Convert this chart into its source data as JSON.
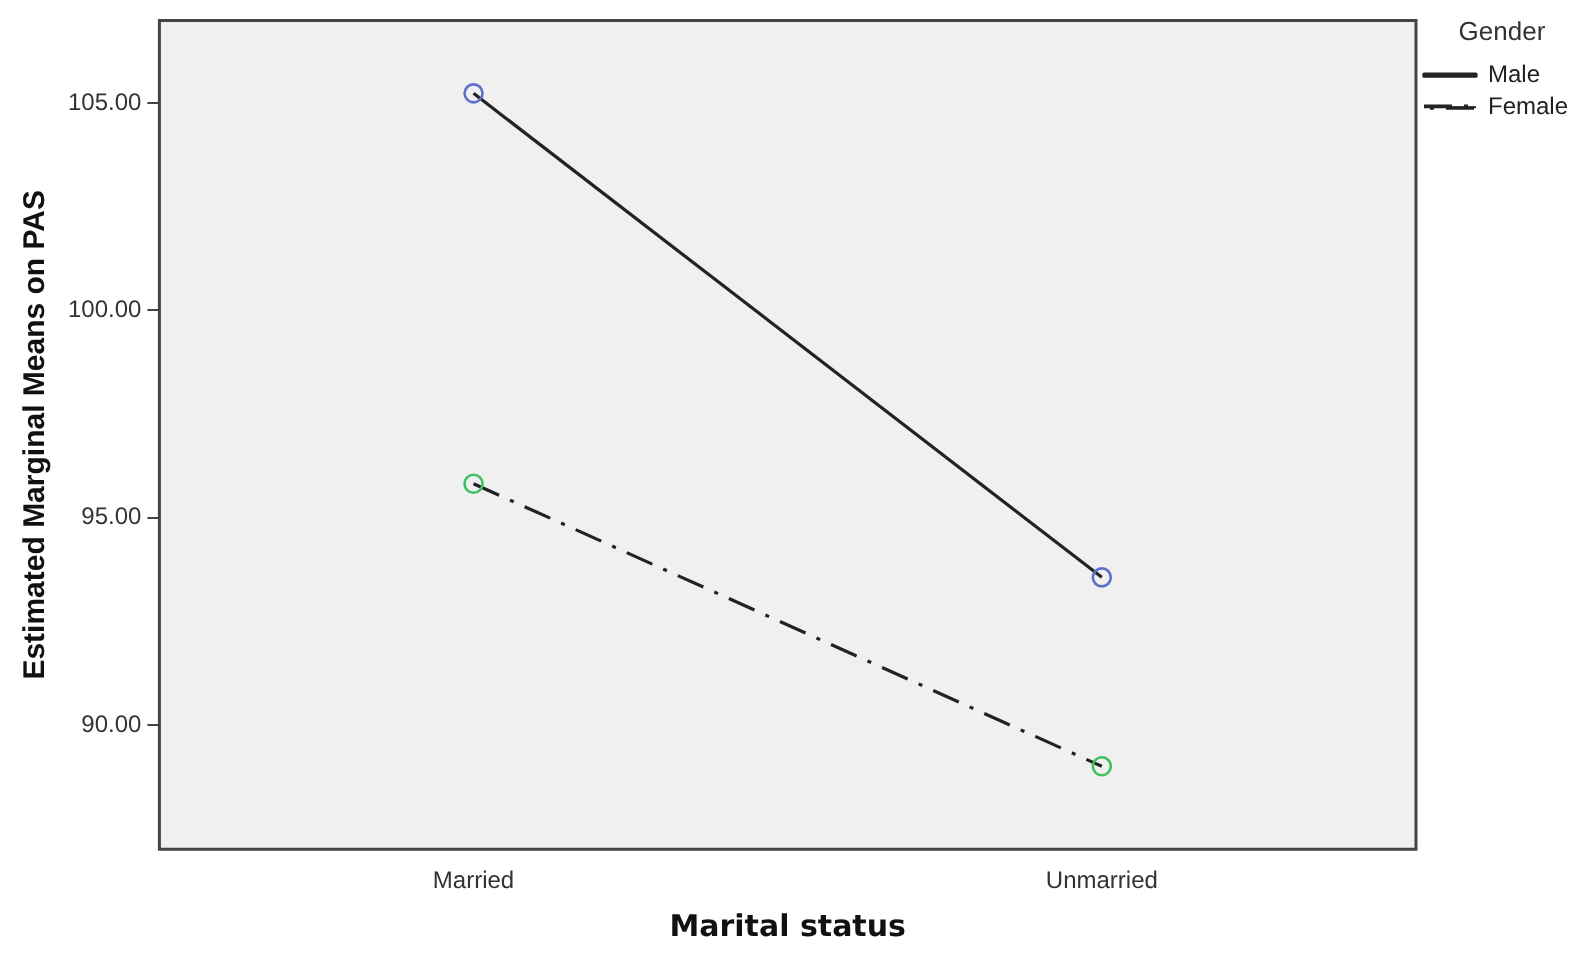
{
  "chart_data": {
    "type": "line",
    "xlabel": "Marital status",
    "ylabel": "Estimated Marginal Means on PAS",
    "legend_title": "Gender",
    "categories": [
      "Married",
      "Unmarried"
    ],
    "series": [
      {
        "name": "Male",
        "color": "#222222",
        "colors": [
          "#6070c8",
          "#6070c8"
        ],
        "values": [
          105.24,
          93.56
        ],
        "line_style": "solid"
      },
      {
        "name": "Female",
        "color": "#222222",
        "colors": [
          "#40c060",
          "#40c060"
        ],
        "values": [
          95.82,
          89.0
        ],
        "line_style": "dashed"
      }
    ],
    "ylim": [
      87,
      107
    ],
    "yticks": [
      {
        "value": 90,
        "label": "90.00"
      },
      {
        "value": 95,
        "label": "95.00"
      },
      {
        "value": 100,
        "label": "100.00"
      },
      {
        "value": 105,
        "label": "105.00"
      }
    ],
    "grid": false,
    "legend": "top right",
    "marker": "circle"
  }
}
